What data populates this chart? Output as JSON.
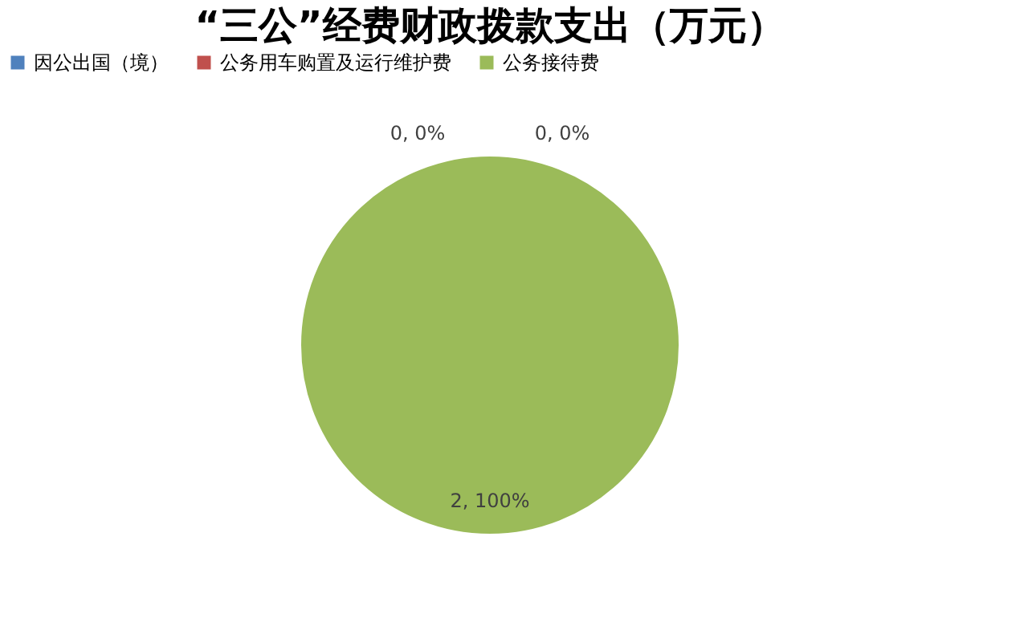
{
  "chart_data": {
    "type": "pie",
    "title": "“三公”经费财政拨款支出（万元）",
    "categories": [
      "因公出国（境）",
      "公务用车购置及运行维护费",
      "公务接待费"
    ],
    "values": [
      0,
      0,
      2
    ],
    "colors": [
      "#4f81bd",
      "#c0504d",
      "#9bbb59"
    ],
    "value_labels": [
      "0, 0%",
      "0, 0%",
      "2, 100%"
    ],
    "legend": "top"
  }
}
